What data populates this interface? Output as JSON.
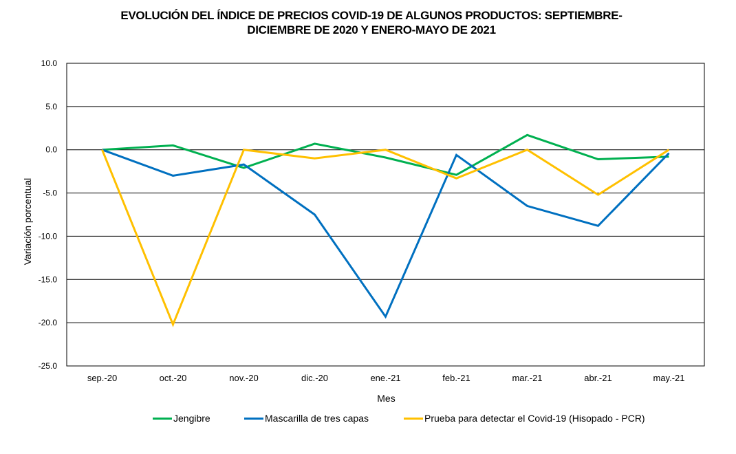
{
  "chart_data": {
    "type": "line",
    "title_lines": [
      "EVOLUCIÓN DEL ÍNDICE DE PRECIOS COVID-19 DE ALGUNOS PRODUCTOS: SEPTIEMBRE-",
      "DICIEMBRE DE 2020 Y ENERO-MAYO DE 2021"
    ],
    "title": "EVOLUCIÓN DEL ÍNDICE DE PRECIOS COVID-19 DE ALGUNOS PRODUCTOS: SEPTIEMBRE-DICIEMBRE DE 2020 Y ENERO-MAYO DE 2021",
    "xlabel": "Mes",
    "ylabel": "Variación porcentual",
    "categories": [
      "sep.-20",
      "oct.-20",
      "nov.-20",
      "dic.-20",
      "ene.-21",
      "feb.-21",
      "mar.-21",
      "abr.-21",
      "may.-21"
    ],
    "ylim": [
      -25,
      10
    ],
    "yticks": [
      10,
      5,
      0,
      -5,
      -10,
      -15,
      -20,
      -25
    ],
    "ytick_labels": [
      "10.0",
      "5.0",
      "0.0",
      "-5.0",
      "-10.0",
      "-15.0",
      "-20.0",
      "-25.0"
    ],
    "grid": true,
    "legend_position": "bottom",
    "series": [
      {
        "name": "Jengibre",
        "color": "#00B050",
        "values": [
          0.0,
          0.5,
          -2.1,
          0.7,
          -0.9,
          -2.9,
          1.7,
          -1.1,
          -0.8
        ]
      },
      {
        "name": "Mascarilla de tres capas",
        "color": "#0070C0",
        "values": [
          0.0,
          -3.0,
          -1.7,
          -7.5,
          -19.3,
          -0.6,
          -6.5,
          -8.8,
          -0.4
        ]
      },
      {
        "name": "Prueba para detectar el Covid-19 (Hisopado - PCR)",
        "color": "#FFC000",
        "values": [
          0.0,
          -20.2,
          0.0,
          -1.0,
          0.0,
          -3.3,
          0.0,
          -5.2,
          0.0
        ]
      }
    ]
  }
}
